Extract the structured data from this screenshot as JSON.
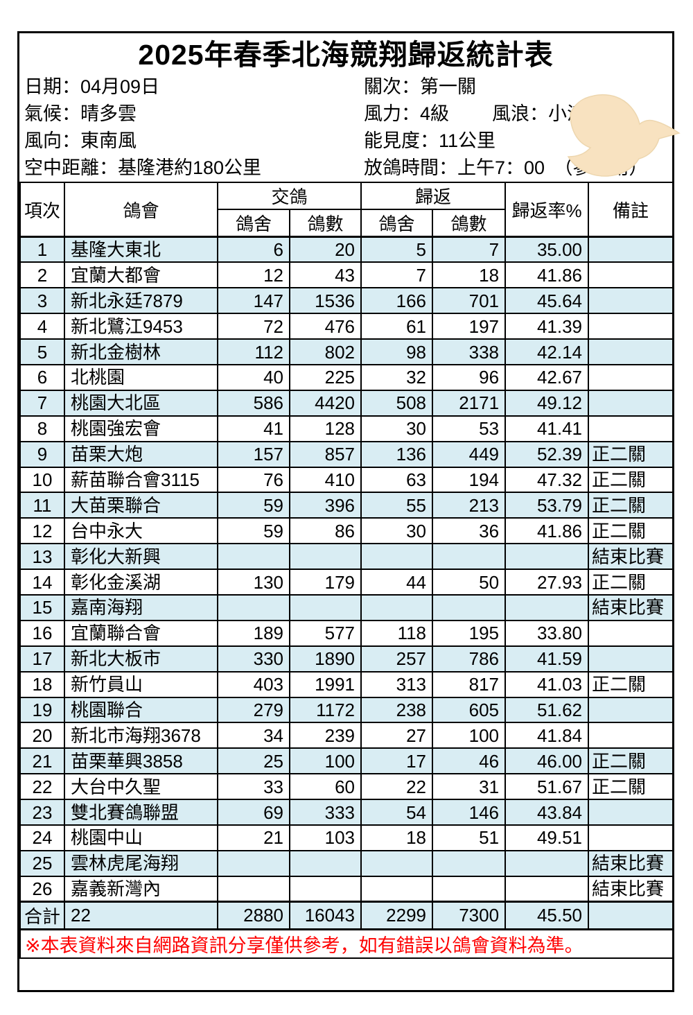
{
  "title": "2025年春季北海競翔歸返統計表",
  "info": {
    "date": "日期：04月09日",
    "round": "關次：第一關",
    "weather": "氣候：晴多雲",
    "wind_force": "風力：4級",
    "wave": "風浪：小浪",
    "wind_direction": "風向：東南風",
    "visibility": "能見度：11公里",
    "distance": "空中距離：基隆港約180公里",
    "release_time": "放鴿時間：上午7：00　（參考用）"
  },
  "icons": {
    "dove": "dove-icon"
  },
  "colors": {
    "row_alt": "#D9EDF3",
    "note_red": "#FE0000",
    "dove": "#F8E2C0",
    "border": "#000000"
  },
  "table": {
    "headers": {
      "item": "項次",
      "club": "鴿會",
      "delivered": "交鴿",
      "returned": "歸返",
      "loft": "鴿舍",
      "count": "鴿數",
      "rate": "歸返率%",
      "remark": "備註"
    },
    "rows": [
      {
        "no": "1",
        "club": "基隆大東北",
        "d_lofts": "6",
        "d_count": "20",
        "r_lofts": "5",
        "r_count": "7",
        "rate": "35.00",
        "remark": ""
      },
      {
        "no": "2",
        "club": "宜蘭大都會",
        "d_lofts": "12",
        "d_count": "43",
        "r_lofts": "7",
        "r_count": "18",
        "rate": "41.86",
        "remark": ""
      },
      {
        "no": "3",
        "club": "新北永廷7879",
        "d_lofts": "147",
        "d_count": "1536",
        "r_lofts": "166",
        "r_count": "701",
        "rate": "45.64",
        "remark": ""
      },
      {
        "no": "4",
        "club": "新北鷺江9453",
        "d_lofts": "72",
        "d_count": "476",
        "r_lofts": "61",
        "r_count": "197",
        "rate": "41.39",
        "remark": ""
      },
      {
        "no": "5",
        "club": "新北金樹林",
        "d_lofts": "112",
        "d_count": "802",
        "r_lofts": "98",
        "r_count": "338",
        "rate": "42.14",
        "remark": ""
      },
      {
        "no": "6",
        "club": "北桃園",
        "d_lofts": "40",
        "d_count": "225",
        "r_lofts": "32",
        "r_count": "96",
        "rate": "42.67",
        "remark": ""
      },
      {
        "no": "7",
        "club": "桃園大北區",
        "d_lofts": "586",
        "d_count": "4420",
        "r_lofts": "508",
        "r_count": "2171",
        "rate": "49.12",
        "remark": ""
      },
      {
        "no": "8",
        "club": "桃園強宏會",
        "d_lofts": "41",
        "d_count": "128",
        "r_lofts": "30",
        "r_count": "53",
        "rate": "41.41",
        "remark": ""
      },
      {
        "no": "9",
        "club": "苗栗大炮",
        "d_lofts": "157",
        "d_count": "857",
        "r_lofts": "136",
        "r_count": "449",
        "rate": "52.39",
        "remark": "正二關"
      },
      {
        "no": "10",
        "club": "薪苗聯合會3115",
        "d_lofts": "76",
        "d_count": "410",
        "r_lofts": "63",
        "r_count": "194",
        "rate": "47.32",
        "remark": "正二關"
      },
      {
        "no": "11",
        "club": "大苗栗聯合",
        "d_lofts": "59",
        "d_count": "396",
        "r_lofts": "55",
        "r_count": "213",
        "rate": "53.79",
        "remark": "正二關"
      },
      {
        "no": "12",
        "club": "台中永大",
        "d_lofts": "59",
        "d_count": "86",
        "r_lofts": "30",
        "r_count": "36",
        "rate": "41.86",
        "remark": "正二關"
      },
      {
        "no": "13",
        "club": "彰化大新興",
        "d_lofts": "",
        "d_count": "",
        "r_lofts": "",
        "r_count": "",
        "rate": "",
        "remark": "結束比賽"
      },
      {
        "no": "14",
        "club": "彰化金溪湖",
        "d_lofts": "130",
        "d_count": "179",
        "r_lofts": "44",
        "r_count": "50",
        "rate": "27.93",
        "remark": "正二關"
      },
      {
        "no": "15",
        "club": "嘉南海翔",
        "d_lofts": "",
        "d_count": "",
        "r_lofts": "",
        "r_count": "",
        "rate": "",
        "remark": "結束比賽"
      },
      {
        "no": "16",
        "club": "宜蘭聯合會",
        "d_lofts": "189",
        "d_count": "577",
        "r_lofts": "118",
        "r_count": "195",
        "rate": "33.80",
        "remark": ""
      },
      {
        "no": "17",
        "club": "新北大板市",
        "d_lofts": "330",
        "d_count": "1890",
        "r_lofts": "257",
        "r_count": "786",
        "rate": "41.59",
        "remark": ""
      },
      {
        "no": "18",
        "club": "新竹員山",
        "d_lofts": "403",
        "d_count": "1991",
        "r_lofts": "313",
        "r_count": "817",
        "rate": "41.03",
        "remark": "正二關"
      },
      {
        "no": "19",
        "club": "桃園聯合",
        "d_lofts": "279",
        "d_count": "1172",
        "r_lofts": "238",
        "r_count": "605",
        "rate": "51.62",
        "remark": ""
      },
      {
        "no": "20",
        "club": "新北市海翔3678",
        "d_lofts": "34",
        "d_count": "239",
        "r_lofts": "27",
        "r_count": "100",
        "rate": "41.84",
        "remark": ""
      },
      {
        "no": "21",
        "club": "苗栗華興3858",
        "d_lofts": "25",
        "d_count": "100",
        "r_lofts": "17",
        "r_count": "46",
        "rate": "46.00",
        "remark": "正二關"
      },
      {
        "no": "22",
        "club": "大台中久聖",
        "d_lofts": "33",
        "d_count": "60",
        "r_lofts": "22",
        "r_count": "31",
        "rate": "51.67",
        "remark": "正二關"
      },
      {
        "no": "23",
        "club": "雙北賽鴿聯盟",
        "d_lofts": "69",
        "d_count": "333",
        "r_lofts": "54",
        "r_count": "146",
        "rate": "43.84",
        "remark": ""
      },
      {
        "no": "24",
        "club": "桃園中山",
        "d_lofts": "21",
        "d_count": "103",
        "r_lofts": "18",
        "r_count": "51",
        "rate": "49.51",
        "remark": ""
      },
      {
        "no": "25",
        "club": "雲林虎尾海翔",
        "d_lofts": "",
        "d_count": "",
        "r_lofts": "",
        "r_count": "",
        "rate": "",
        "remark": "結束比賽"
      },
      {
        "no": "26",
        "club": "嘉義新灣內",
        "d_lofts": "",
        "d_count": "",
        "r_lofts": "",
        "r_count": "",
        "rate": "",
        "remark": "結束比賽"
      }
    ],
    "total": {
      "label": "合計",
      "club": "22",
      "d_lofts": "2880",
      "d_count": "16043",
      "r_lofts": "2299",
      "r_count": "7300",
      "rate": "45.50",
      "remark": ""
    }
  },
  "footer": {
    "note": "※本表資料來自網路資訊分享僅供參考，如有錯誤以鴿會資料為準。"
  }
}
